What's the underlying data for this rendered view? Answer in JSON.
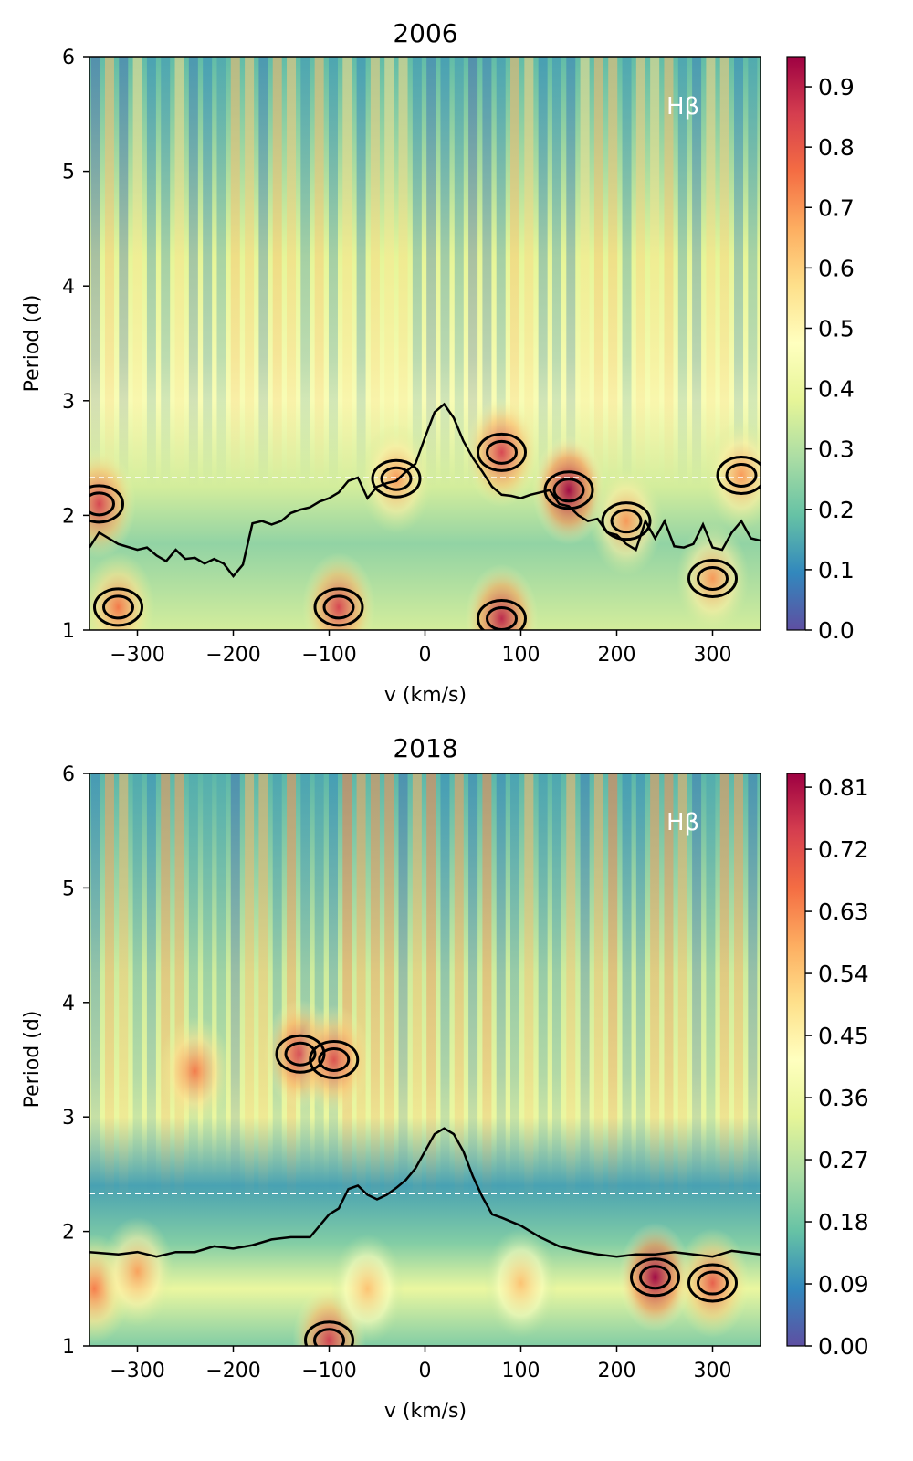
{
  "chart_data": [
    {
      "type": "heatmap",
      "title": "2006",
      "xlabel": "v (km/s)",
      "ylabel": "Period (d)",
      "annotation": "Hβ",
      "xlim": [
        -350,
        350
      ],
      "ylim": [
        1,
        6
      ],
      "x_ticks": [
        -300,
        -200,
        -100,
        0,
        100,
        200,
        300
      ],
      "y_ticks": [
        1,
        2,
        3,
        4,
        5,
        6
      ],
      "colorbar": {
        "ticks": [
          "0.0",
          "0.1",
          "0.2",
          "0.3",
          "0.4",
          "0.5",
          "0.6",
          "0.7",
          "0.8",
          "0.9"
        ],
        "min": 0.0,
        "max": 0.95,
        "colormap": "Spectral_r"
      },
      "dashed_line_period": 2.33,
      "profile_line": {
        "v": [
          -350,
          -340,
          -320,
          -300,
          -290,
          -280,
          -270,
          -260,
          -250,
          -240,
          -230,
          -220,
          -210,
          -200,
          -190,
          -180,
          -170,
          -160,
          -150,
          -140,
          -130,
          -120,
          -110,
          -100,
          -90,
          -80,
          -70,
          -60,
          -50,
          -40,
          -30,
          -20,
          -10,
          0,
          10,
          20,
          30,
          40,
          50,
          60,
          70,
          80,
          90,
          100,
          110,
          120,
          130,
          140,
          150,
          160,
          170,
          180,
          190,
          200,
          210,
          220,
          230,
          240,
          250,
          260,
          270,
          280,
          290,
          300,
          310,
          320,
          330,
          340,
          350
        ],
        "period": [
          1.72,
          1.85,
          1.75,
          1.7,
          1.72,
          1.65,
          1.6,
          1.7,
          1.62,
          1.63,
          1.58,
          1.62,
          1.58,
          1.47,
          1.57,
          1.93,
          1.95,
          1.92,
          1.95,
          2.02,
          2.05,
          2.07,
          2.12,
          2.15,
          2.2,
          2.3,
          2.33,
          2.15,
          2.25,
          2.28,
          2.3,
          2.38,
          2.45,
          2.68,
          2.9,
          2.97,
          2.85,
          2.65,
          2.5,
          2.38,
          2.25,
          2.18,
          2.17,
          2.15,
          2.18,
          2.2,
          2.22,
          2.1,
          2.08,
          2.0,
          1.95,
          1.97,
          1.85,
          1.83,
          1.75,
          1.7,
          1.95,
          1.8,
          1.95,
          1.73,
          1.72,
          1.75,
          1.92,
          1.72,
          1.7,
          1.85,
          1.95,
          1.8,
          1.78
        ]
      },
      "hotspots": [
        {
          "v": 80,
          "period": 2.55,
          "value": 0.85
        },
        {
          "v": 150,
          "period": 2.22,
          "value": 0.95
        },
        {
          "v": -30,
          "period": 2.32,
          "value": 0.7
        },
        {
          "v": 330,
          "period": 2.35,
          "value": 0.7
        },
        {
          "v": -340,
          "period": 2.1,
          "value": 0.85
        },
        {
          "v": -90,
          "period": 1.2,
          "value": 0.85
        },
        {
          "v": 80,
          "period": 1.1,
          "value": 0.9
        },
        {
          "v": -320,
          "period": 1.2,
          "value": 0.75
        },
        {
          "v": 300,
          "period": 1.45,
          "value": 0.7
        },
        {
          "v": 210,
          "period": 1.95,
          "value": 0.7
        }
      ]
    },
    {
      "type": "heatmap",
      "title": "2018",
      "xlabel": "v (km/s)",
      "ylabel": "Period (d)",
      "annotation": "Hβ",
      "xlim": [
        -350,
        350
      ],
      "ylim": [
        1,
        6
      ],
      "x_ticks": [
        -300,
        -200,
        -100,
        0,
        100,
        200,
        300
      ],
      "y_ticks": [
        1,
        2,
        3,
        4,
        5,
        6
      ],
      "colorbar": {
        "ticks": [
          "0.00",
          "0.09",
          "0.18",
          "0.27",
          "0.36",
          "0.45",
          "0.54",
          "0.63",
          "0.72",
          "0.81"
        ],
        "min": 0.0,
        "max": 0.83,
        "colormap": "Spectral_r"
      },
      "dashed_line_period": 2.33,
      "profile_line": {
        "v": [
          -350,
          -320,
          -300,
          -280,
          -260,
          -240,
          -220,
          -200,
          -180,
          -160,
          -140,
          -120,
          -100,
          -90,
          -80,
          -70,
          -60,
          -50,
          -40,
          -30,
          -20,
          -10,
          0,
          10,
          20,
          30,
          40,
          50,
          60,
          70,
          80,
          100,
          120,
          140,
          160,
          180,
          200,
          220,
          240,
          260,
          280,
          300,
          320,
          350
        ],
        "period": [
          1.82,
          1.8,
          1.82,
          1.78,
          1.82,
          1.82,
          1.87,
          1.85,
          1.88,
          1.93,
          1.95,
          1.95,
          2.15,
          2.2,
          2.37,
          2.4,
          2.32,
          2.28,
          2.32,
          2.38,
          2.45,
          2.55,
          2.7,
          2.85,
          2.9,
          2.85,
          2.7,
          2.48,
          2.3,
          2.15,
          2.12,
          2.05,
          1.95,
          1.87,
          1.83,
          1.8,
          1.78,
          1.8,
          1.8,
          1.82,
          1.8,
          1.78,
          1.83,
          1.8
        ]
      },
      "hotspots": [
        {
          "v": -130,
          "period": 3.55,
          "value": 0.75
        },
        {
          "v": -95,
          "period": 3.5,
          "value": 0.72
        },
        {
          "v": -240,
          "period": 3.4,
          "value": 0.65
        },
        {
          "v": 240,
          "period": 1.6,
          "value": 0.83
        },
        {
          "v": 300,
          "period": 1.55,
          "value": 0.7
        },
        {
          "v": -345,
          "period": 1.5,
          "value": 0.65
        },
        {
          "v": -300,
          "period": 1.65,
          "value": 0.6
        },
        {
          "v": -100,
          "period": 1.05,
          "value": 0.75
        },
        {
          "v": -60,
          "period": 1.5,
          "value": 0.55
        },
        {
          "v": 100,
          "period": 1.55,
          "value": 0.55
        }
      ]
    }
  ]
}
